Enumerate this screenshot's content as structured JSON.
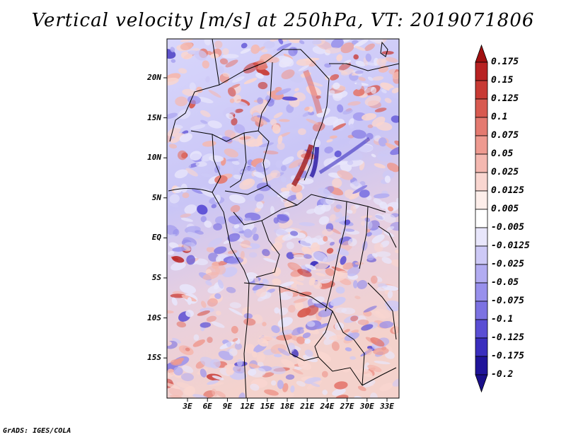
{
  "title": "Vertical velocity [m/s] at 250hPa, VT: 2019071806",
  "credit": "GrADS: IGES/COLA",
  "map": {
    "latitude_labels": [
      "20N",
      "15N",
      "10N",
      "5N",
      "EQ",
      "5S",
      "10S",
      "15S"
    ],
    "longitude_labels": [
      "3E",
      "6E",
      "9E",
      "12E",
      "15E",
      "18E",
      "21E",
      "24E",
      "27E",
      "30E",
      "33E"
    ],
    "lon_range": [
      0,
      35
    ],
    "lat_range": [
      -20,
      24
    ]
  },
  "colorbar": {
    "levels": [
      "0.175",
      "0.15",
      "0.125",
      "0.1",
      "0.075",
      "0.05",
      "0.025",
      "0.0125",
      "0.005",
      "-0.005",
      "-0.0125",
      "-0.025",
      "-0.05",
      "-0.075",
      "-0.1",
      "-0.125",
      "-0.175",
      "-0.2"
    ],
    "colors": [
      "#a01010",
      "#b82222",
      "#c83a34",
      "#d85a50",
      "#e47a70",
      "#ee9a90",
      "#f4b8b0",
      "#f9d6d0",
      "#fdeeea",
      "#ffffff",
      "#e8e6fb",
      "#cdc9f6",
      "#b2acf1",
      "#9890ec",
      "#7c72e2",
      "#5a4ed4",
      "#3a2ebe",
      "#20149a",
      "#1a0f8a"
    ]
  }
}
